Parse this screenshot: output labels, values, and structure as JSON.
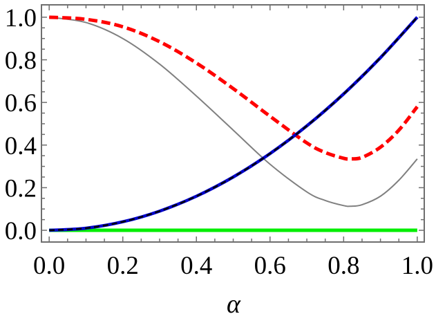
{
  "chart_data": {
    "type": "line",
    "title": "",
    "xlabel": "α",
    "ylabel": "",
    "xlim": [
      -0.021,
      1.019
    ],
    "ylim": [
      -0.055,
      1.058
    ],
    "grid": false,
    "legend": "none",
    "x_ticks": [
      "0.0",
      "0.2",
      "0.4",
      "0.6",
      "0.8",
      "1.0"
    ],
    "y_ticks": [
      "0.0",
      "0.2",
      "0.4",
      "0.6",
      "0.8",
      "1.0"
    ],
    "series": [
      {
        "style": "solid",
        "color": "#808080",
        "x": [
          0,
          0.1,
          0.2,
          0.3,
          0.4,
          0.5,
          0.6,
          0.7,
          0.75,
          0.8,
          0.82,
          0.85,
          0.9,
          0.95,
          1.0
        ],
        "y": [
          1.0,
          0.975,
          0.9,
          0.78,
          0.63,
          0.47,
          0.31,
          0.18,
          0.14,
          0.116,
          0.113,
          0.12,
          0.16,
          0.235,
          0.335
        ]
      },
      {
        "style": "dashed",
        "color": "#ff0000",
        "x": [
          0,
          0.1,
          0.2,
          0.3,
          0.4,
          0.5,
          0.6,
          0.7,
          0.75,
          0.8,
          0.82,
          0.85,
          0.9,
          0.95,
          1.0
        ],
        "y": [
          1.0,
          0.99,
          0.955,
          0.885,
          0.785,
          0.665,
          0.535,
          0.41,
          0.365,
          0.338,
          0.335,
          0.342,
          0.39,
          0.47,
          0.58
        ]
      },
      {
        "style": "blue-black-dashed",
        "color": "#0000cc",
        "x": [
          0,
          0.1,
          0.2,
          0.3,
          0.4,
          0.5,
          0.6,
          0.7,
          0.8,
          0.9,
          1.0
        ],
        "y": [
          0,
          0.01,
          0.04,
          0.09,
          0.16,
          0.25,
          0.36,
          0.49,
          0.64,
          0.81,
          1.0
        ]
      },
      {
        "style": "solid",
        "color": "#00ee00",
        "x": [
          0,
          1.0
        ],
        "y": [
          0,
          0
        ]
      }
    ]
  }
}
